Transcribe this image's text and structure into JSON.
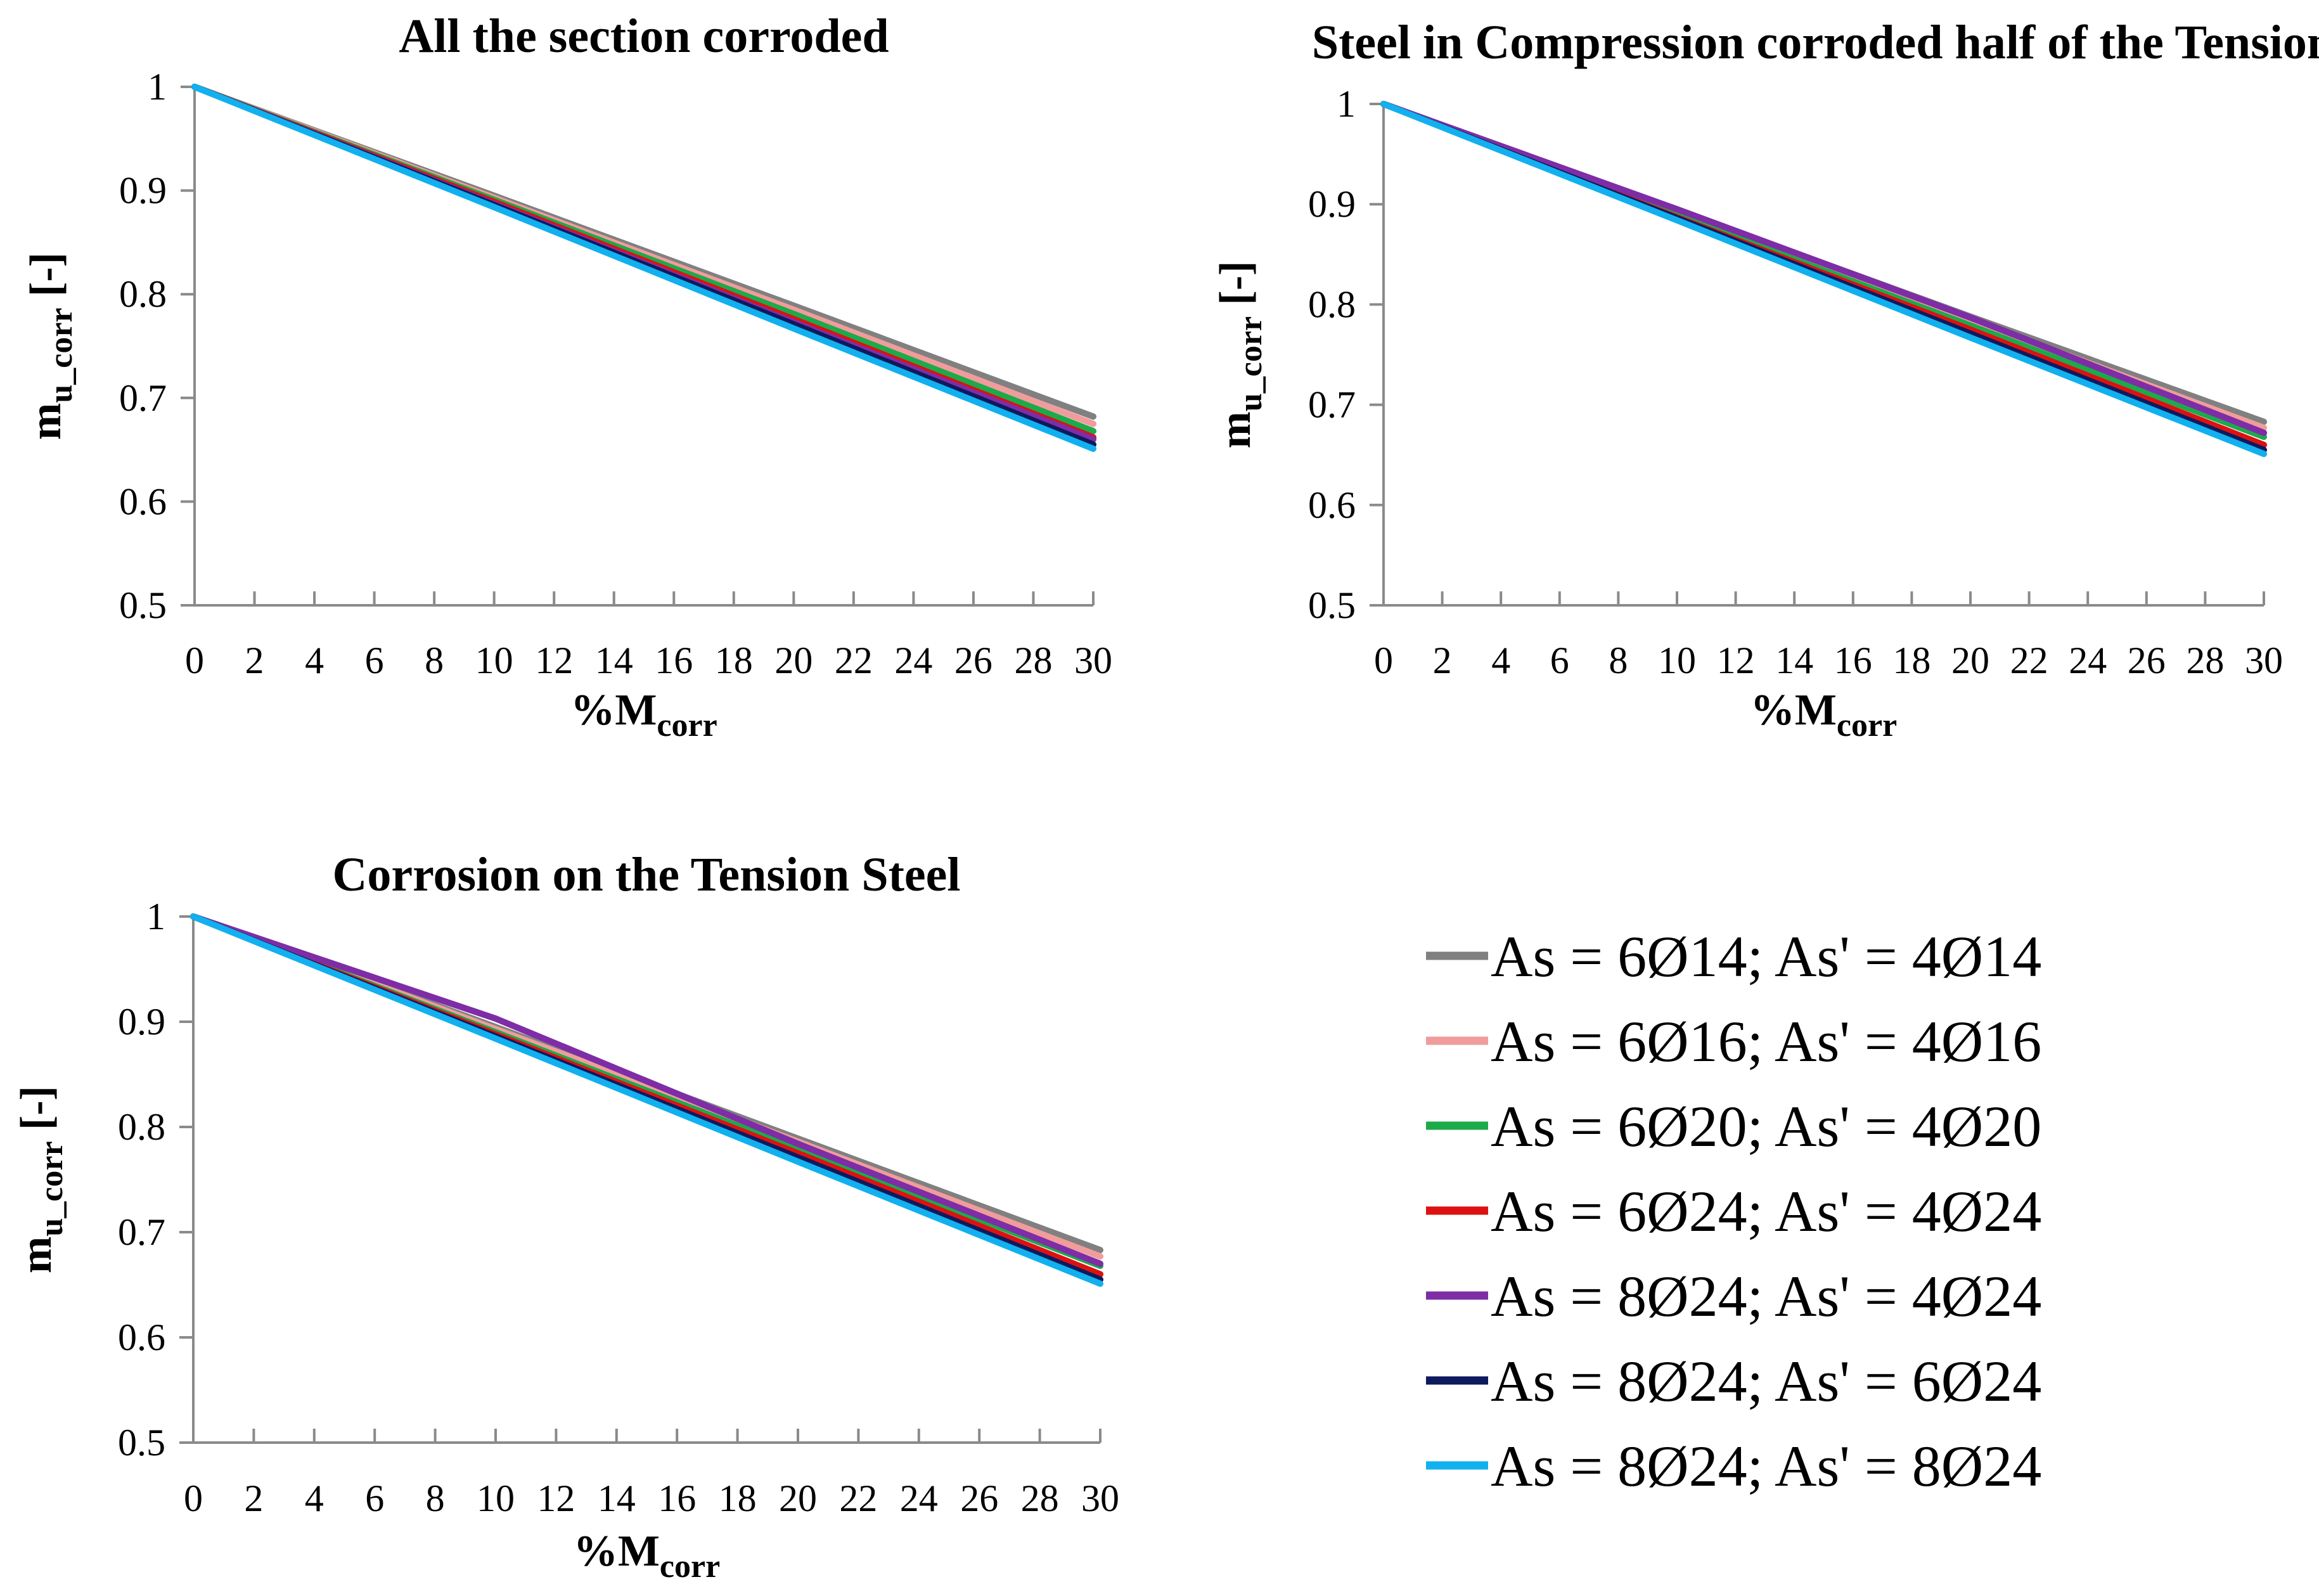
{
  "legend": {
    "entries": [
      {
        "label": "As = 6Ø14; As' = 4Ø14",
        "color": "#808080"
      },
      {
        "label": "As = 6Ø16; As' = 4Ø16",
        "color": "#F19C9C"
      },
      {
        "label": "As = 6Ø20; As' = 4Ø20",
        "color": "#1DAA4A"
      },
      {
        "label": "As = 6Ø24; As' = 4Ø24",
        "color": "#DD1111"
      },
      {
        "label": "As = 8Ø24; As' = 4Ø24",
        "color": "#7E2DA6"
      },
      {
        "label": "As = 8Ø24; As' = 6Ø24",
        "color": "#0D1A5E"
      },
      {
        "label": "As = 8Ø24; As' = 8Ø24",
        "color": "#12B0EE"
      }
    ]
  },
  "chart_data": [
    {
      "type": "line",
      "title": "All the section corroded",
      "xlabel": {
        "main": "%M",
        "sub": "corr"
      },
      "ylabel": {
        "main": "m",
        "sub": "u_corr",
        "suffix": "[-]"
      },
      "xlim": [
        0,
        30
      ],
      "ylim": [
        0.5,
        1
      ],
      "xticks": [
        0,
        2,
        4,
        6,
        8,
        10,
        12,
        14,
        16,
        18,
        20,
        22,
        24,
        26,
        28,
        30
      ],
      "yticks": [
        0.5,
        0.6,
        0.7,
        0.8,
        0.9,
        1
      ],
      "x": [
        0,
        10,
        20,
        30
      ],
      "series": [
        {
          "name": "As = 6Ø14; As' = 4Ø14",
          "values": [
            1,
            0.895,
            0.789,
            0.682
          ]
        },
        {
          "name": "As = 6Ø16; As' = 4Ø16",
          "values": [
            1,
            0.893,
            0.785,
            0.675
          ]
        },
        {
          "name": "As = 6Ø20; As' = 4Ø20",
          "values": [
            1,
            0.891,
            0.781,
            0.668
          ]
        },
        {
          "name": "As = 6Ø24; As' = 4Ø24",
          "values": [
            1,
            0.889,
            0.776,
            0.662
          ]
        },
        {
          "name": "As = 8Ø24; As' = 4Ø24",
          "values": [
            1,
            0.887,
            0.773,
            0.66
          ]
        },
        {
          "name": "As = 8Ø24; As' = 6Ø24",
          "values": [
            1,
            0.886,
            0.771,
            0.655
          ]
        },
        {
          "name": "As = 8Ø24; As' = 8Ø24",
          "values": [
            1,
            0.884,
            0.767,
            0.651
          ]
        }
      ]
    },
    {
      "type": "line",
      "title": "Steel in Compression corroded half of the Tension",
      "xlabel": {
        "main": "%M",
        "sub": "corr"
      },
      "ylabel": {
        "main": "m",
        "sub": "u_corr",
        "suffix": "[-]"
      },
      "xlim": [
        0,
        30
      ],
      "ylim": [
        0.5,
        1
      ],
      "xticks": [
        0,
        2,
        4,
        6,
        8,
        10,
        12,
        14,
        16,
        18,
        20,
        22,
        24,
        26,
        28,
        30
      ],
      "yticks": [
        0.5,
        0.6,
        0.7,
        0.8,
        0.9,
        1
      ],
      "x": [
        0,
        10,
        20,
        30
      ],
      "series": [
        {
          "name": "As = 6Ø14; As' = 4Ø14",
          "values": [
            1,
            0.894,
            0.788,
            0.683
          ]
        },
        {
          "name": "As = 6Ø16; As' = 4Ø16",
          "values": [
            1,
            0.893,
            0.785,
            0.677
          ]
        },
        {
          "name": "As = 6Ø20; As' = 4Ø20",
          "values": [
            1,
            0.889,
            0.779,
            0.668
          ]
        },
        {
          "name": "As = 6Ø24; As' = 4Ø24",
          "values": [
            1,
            0.887,
            0.775,
            0.66
          ]
        },
        {
          "name": "As = 8Ø24; As' = 4Ø24",
          "values": [
            1,
            0.895,
            0.787,
            0.672
          ]
        },
        {
          "name": "As = 8Ø24; As' = 6Ø24",
          "values": [
            1,
            0.886,
            0.771,
            0.655
          ]
        },
        {
          "name": "As = 8Ø24; As' = 8Ø24",
          "values": [
            1,
            0.884,
            0.767,
            0.651
          ]
        }
      ]
    },
    {
      "type": "line",
      "title": "Corrosion on the Tension Steel",
      "xlabel": {
        "main": "%M",
        "sub": "corr"
      },
      "ylabel": {
        "main": "m",
        "sub": "u_corr",
        "suffix": "[-]"
      },
      "xlim": [
        0,
        30
      ],
      "ylim": [
        0.5,
        1
      ],
      "xticks": [
        0,
        2,
        4,
        6,
        8,
        10,
        12,
        14,
        16,
        18,
        20,
        22,
        24,
        26,
        28,
        30
      ],
      "yticks": [
        0.5,
        0.6,
        0.7,
        0.8,
        0.9,
        1
      ],
      "x": [
        0,
        10,
        20,
        30
      ],
      "series": [
        {
          "name": "As = 6Ø14; As' = 4Ø14",
          "values": [
            1,
            0.895,
            0.789,
            0.683
          ]
        },
        {
          "name": "As = 6Ø16; As' = 4Ø16",
          "values": [
            1,
            0.893,
            0.786,
            0.677
          ]
        },
        {
          "name": "As = 6Ø20; As' = 4Ø20",
          "values": [
            1,
            0.89,
            0.779,
            0.668
          ]
        },
        {
          "name": "As = 6Ø24; As' = 4Ø24",
          "values": [
            1,
            0.888,
            0.775,
            0.66
          ]
        },
        {
          "name": "As = 8Ø24; As' = 4Ø24",
          "values": [
            1,
            0.903,
            0.784,
            0.67
          ]
        },
        {
          "name": "As = 8Ø24; As' = 6Ø24",
          "values": [
            1,
            0.886,
            0.771,
            0.655
          ]
        },
        {
          "name": "As = 8Ø24; As' = 8Ø24",
          "values": [
            1,
            0.884,
            0.767,
            0.651
          ]
        }
      ]
    }
  ]
}
